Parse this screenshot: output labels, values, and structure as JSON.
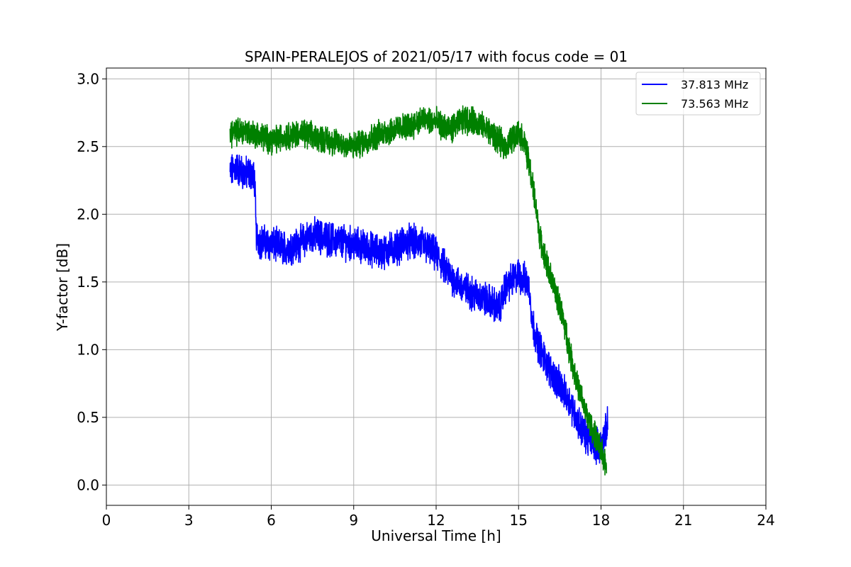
{
  "chart_data": {
    "type": "line",
    "title": "SPAIN-PERALEJOS of 2021/05/17 with focus code = 01",
    "xlabel": "Universal Time [h]",
    "ylabel": "Y-factor [dB]",
    "xlim": [
      0,
      24
    ],
    "ylim": [
      -0.15,
      3.08
    ],
    "xticks": [
      0,
      3,
      6,
      9,
      12,
      15,
      18,
      21,
      24
    ],
    "xtick_labels": [
      "0",
      "3",
      "6",
      "9",
      "12",
      "15",
      "18",
      "21",
      "24"
    ],
    "yticks": [
      0.0,
      0.5,
      1.0,
      1.5,
      2.0,
      2.5,
      3.0
    ],
    "ytick_labels": [
      "0.0",
      "0.5",
      "1.0",
      "1.5",
      "2.0",
      "2.5",
      "3.0"
    ],
    "grid": true,
    "legend_position": "top-right",
    "series": [
      {
        "name": "37.813 MHz",
        "color": "#0000ff",
        "noise": 0.1,
        "x": [
          4.5,
          4.7,
          5.0,
          5.3,
          5.4,
          5.45,
          5.6,
          6.0,
          6.5,
          7.0,
          7.5,
          8.0,
          8.5,
          9.0,
          9.5,
          10.0,
          10.5,
          11.0,
          11.5,
          12.0,
          12.5,
          13.0,
          13.5,
          14.0,
          14.3,
          14.5,
          14.7,
          15.0,
          15.3,
          15.4,
          15.5,
          15.7,
          16.0,
          16.3,
          16.6,
          16.9,
          17.2,
          17.5,
          17.8,
          18.0,
          18.1,
          18.25
        ],
        "y": [
          2.3,
          2.35,
          2.3,
          2.3,
          2.25,
          1.85,
          1.8,
          1.78,
          1.75,
          1.78,
          1.85,
          1.82,
          1.8,
          1.78,
          1.75,
          1.72,
          1.75,
          1.8,
          1.78,
          1.7,
          1.55,
          1.45,
          1.4,
          1.35,
          1.3,
          1.45,
          1.5,
          1.55,
          1.5,
          1.45,
          1.2,
          1.05,
          0.9,
          0.8,
          0.7,
          0.6,
          0.45,
          0.35,
          0.3,
          0.28,
          0.35,
          0.45
        ]
      },
      {
        "name": "73.563 MHz",
        "color": "#008000",
        "noise": 0.08,
        "x": [
          4.5,
          5.0,
          6.0,
          7.0,
          8.0,
          9.0,
          10.0,
          11.0,
          11.5,
          12.0,
          12.5,
          13.0,
          13.5,
          14.0,
          14.5,
          15.0,
          15.2,
          15.4,
          15.6,
          15.8,
          16.0,
          16.3,
          16.6,
          16.9,
          17.2,
          17.5,
          17.8,
          18.0,
          18.2
        ],
        "y": [
          2.6,
          2.62,
          2.55,
          2.6,
          2.55,
          2.5,
          2.6,
          2.65,
          2.7,
          2.68,
          2.62,
          2.7,
          2.68,
          2.6,
          2.5,
          2.6,
          2.55,
          2.35,
          2.1,
          1.8,
          1.65,
          1.45,
          1.25,
          0.95,
          0.7,
          0.5,
          0.35,
          0.25,
          0.15
        ]
      }
    ]
  }
}
